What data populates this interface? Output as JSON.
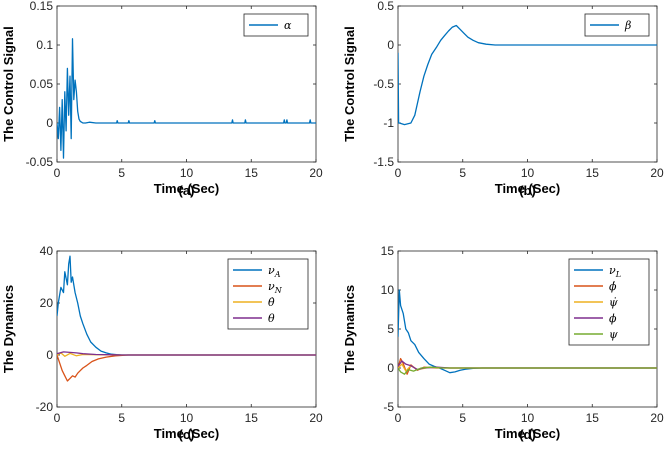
{
  "colors": {
    "blue": "#0072BD",
    "orange": "#D95319",
    "yellow": "#EDB120",
    "purple": "#7E2F8E",
    "green": "#77AC30"
  },
  "chart_data": [
    {
      "type": "line",
      "ylabel": "The Control Signal",
      "xlabel": "Time (Sec)",
      "caption": "(a)",
      "xlim": [
        0,
        20
      ],
      "ylim": [
        -0.05,
        0.15
      ],
      "xticks": [
        0,
        5,
        10,
        15,
        20
      ],
      "xtick_labels": [
        "0",
        "5",
        "10",
        "15",
        "20"
      ],
      "yticks": [
        -0.05,
        0,
        0.05,
        0.1,
        0.15
      ],
      "ytick_labels": [
        "-0.05",
        "0",
        "0.05",
        "0.1",
        "0.15"
      ],
      "legend_position": "top-right",
      "series": [
        {
          "name": "α",
          "color": "blue",
          "x": [
            0,
            0.1,
            0.2,
            0.3,
            0.4,
            0.5,
            0.6,
            0.7,
            0.8,
            0.9,
            1.0,
            1.1,
            1.2,
            1.3,
            1.4,
            1.5,
            1.6,
            1.7,
            1.8,
            1.9,
            2.0,
            2.2,
            2.5,
            3.0,
            4.0,
            4.6,
            4.65,
            4.7,
            5.0,
            5.5,
            5.55,
            5.6,
            6.0,
            7.5,
            7.55,
            7.6,
            8.0,
            10.0,
            13.5,
            13.55,
            13.6,
            14.5,
            14.55,
            14.6,
            17.5,
            17.55,
            17.6,
            17.7,
            17.75,
            17.8,
            19.5,
            19.55,
            19.6,
            20.0
          ],
          "y": [
            0.0,
            -0.02,
            0.02,
            -0.035,
            0.03,
            -0.045,
            0.04,
            -0.01,
            0.07,
            0.01,
            0.06,
            -0.02,
            0.108,
            0.03,
            0.055,
            0.04,
            0.015,
            0.005,
            0.002,
            0.001,
            0.0,
            0.0,
            0.001,
            0.0,
            0.0,
            0.0,
            0.003,
            0.0,
            0.0,
            0.0,
            0.003,
            0.0,
            0.0,
            0.0,
            0.003,
            0.0,
            0.0,
            0.0,
            0.0,
            0.004,
            0.0,
            0.0,
            0.004,
            0.0,
            0.0,
            0.004,
            0.0,
            0.0,
            0.004,
            0.0,
            0.0,
            0.004,
            0.0,
            0.0
          ]
        }
      ]
    },
    {
      "type": "line",
      "ylabel": "The Control Signal",
      "xlabel": "Time (Sec)",
      "caption": "(b)",
      "xlim": [
        0,
        20
      ],
      "ylim": [
        -1.5,
        0.5
      ],
      "xticks": [
        0,
        5,
        10,
        15,
        20
      ],
      "xtick_labels": [
        "0",
        "5",
        "10",
        "15",
        "20"
      ],
      "yticks": [
        -1.5,
        -1,
        -0.5,
        0,
        0.5
      ],
      "ytick_labels": [
        "-1.5",
        "-1",
        "-0.5",
        "0",
        "0.5"
      ],
      "legend_position": "top-right",
      "series": [
        {
          "name": "β",
          "color": "blue",
          "x": [
            0,
            0.05,
            0.1,
            0.5,
            1.0,
            1.3,
            1.5,
            1.7,
            2.0,
            2.3,
            2.6,
            3.0,
            3.3,
            3.6,
            3.9,
            4.2,
            4.5,
            4.8,
            5.1,
            5.4,
            5.8,
            6.2,
            6.8,
            7.5,
            8.5,
            10.0,
            15.0,
            20.0
          ],
          "y": [
            -0.1,
            -1.0,
            -1.0,
            -1.02,
            -1.0,
            -0.9,
            -0.75,
            -0.6,
            -0.4,
            -0.25,
            -0.12,
            -0.02,
            0.06,
            0.12,
            0.18,
            0.23,
            0.25,
            0.2,
            0.15,
            0.1,
            0.06,
            0.03,
            0.01,
            0.0,
            0.0,
            0.0,
            0.0,
            0.0
          ]
        }
      ]
    },
    {
      "type": "line",
      "ylabel": "The Dynamics",
      "xlabel": "Time (Sec)",
      "caption": "(c)",
      "xlim": [
        0,
        20
      ],
      "ylim": [
        -20,
        40
      ],
      "xticks": [
        0,
        5,
        10,
        15,
        20
      ],
      "xtick_labels": [
        "0",
        "5",
        "10",
        "15",
        "20"
      ],
      "yticks": [
        -20,
        0,
        20,
        40
      ],
      "ytick_labels": [
        "-20",
        "0",
        "20",
        "40"
      ],
      "legend_position": "top-right",
      "series": [
        {
          "name": "νA",
          "legend_base": "ν",
          "legend_sub": "A",
          "color": "blue",
          "x": [
            0,
            0.1,
            0.3,
            0.5,
            0.6,
            0.8,
            0.9,
            1.0,
            1.1,
            1.2,
            1.4,
            1.6,
            1.8,
            2.0,
            2.3,
            2.6,
            3.0,
            3.4,
            3.8,
            4.2,
            4.6,
            5.0,
            6.0,
            8.0,
            20.0
          ],
          "y": [
            15,
            20,
            26,
            24,
            32,
            27,
            35,
            38,
            28,
            30,
            24,
            20,
            15,
            12,
            8,
            5,
            3,
            1.5,
            0.8,
            0.3,
            0.1,
            0,
            0,
            0,
            0
          ]
        },
        {
          "name": "νN",
          "legend_base": "ν",
          "legend_sub": "N",
          "color": "orange",
          "x": [
            0,
            0.2,
            0.4,
            0.6,
            0.8,
            1.0,
            1.2,
            1.4,
            1.6,
            1.8,
            2.0,
            2.3,
            2.7,
            3.2,
            3.8,
            4.5,
            5.5,
            7.0,
            20.0
          ],
          "y": [
            0,
            -3,
            -6,
            -8,
            -10,
            -9,
            -8,
            -8.5,
            -7,
            -6,
            -5,
            -4,
            -2.5,
            -1.5,
            -0.8,
            -0.3,
            0,
            0,
            0
          ]
        },
        {
          "name": "θ̇",
          "legend_base": "θ̇",
          "legend_sub": "",
          "color": "yellow",
          "x": [
            0,
            0.3,
            0.6,
            1.0,
            1.5,
            2.0,
            3.0,
            5.0,
            20.0
          ],
          "y": [
            0,
            0.8,
            -0.5,
            0.6,
            -0.3,
            0.2,
            0.1,
            0,
            0
          ]
        },
        {
          "name": "θ",
          "legend_base": "θ",
          "legend_sub": "",
          "color": "purple",
          "x": [
            0,
            0.5,
            1.0,
            1.5,
            2.0,
            3.0,
            4.0,
            5.0,
            20.0
          ],
          "y": [
            0.5,
            1.2,
            1.0,
            0.8,
            0.5,
            0.2,
            0.1,
            0,
            0
          ]
        }
      ]
    },
    {
      "type": "line",
      "ylabel": "The Dynamics",
      "xlabel": "Time (Sec)",
      "caption": "(d)",
      "xlim": [
        0,
        20
      ],
      "ylim": [
        -5,
        15
      ],
      "xticks": [
        0,
        5,
        10,
        15,
        20
      ],
      "xtick_labels": [
        "0",
        "5",
        "10",
        "15",
        "20"
      ],
      "yticks": [
        -5,
        0,
        5,
        10,
        15
      ],
      "ytick_labels": [
        "-5",
        "0",
        "5",
        "10",
        "15"
      ],
      "legend_position": "top-right",
      "series": [
        {
          "name": "νL",
          "legend_base": "ν",
          "legend_sub": "L",
          "color": "blue",
          "x": [
            0,
            0.1,
            0.2,
            0.4,
            0.6,
            0.8,
            1.0,
            1.3,
            1.6,
            2.0,
            2.4,
            2.8,
            3.2,
            3.6,
            4.0,
            4.4,
            4.8,
            5.2,
            5.8,
            6.5,
            7.5,
            9.0,
            20.0
          ],
          "y": [
            4,
            10,
            8,
            7,
            5,
            4.5,
            3.5,
            3,
            2,
            1.2,
            0.5,
            0.2,
            0,
            -0.3,
            -0.6,
            -0.5,
            -0.3,
            -0.15,
            -0.05,
            0,
            0,
            0,
            0
          ]
        },
        {
          "name": "ϕ̇",
          "legend_base": "ϕ̇",
          "legend_sub": "",
          "color": "orange",
          "x": [
            0,
            0.2,
            0.4,
            0.7,
            1.0,
            1.5,
            2.0,
            3.0,
            5.0,
            20.0
          ],
          "y": [
            0,
            1.2,
            0.6,
            -0.8,
            0.4,
            -0.3,
            0.1,
            0,
            0,
            0
          ]
        },
        {
          "name": "ψ̇",
          "legend_base": "ψ̇",
          "legend_sub": "",
          "color": "yellow",
          "x": [
            0,
            0.3,
            0.6,
            1.0,
            1.5,
            2.5,
            4.0,
            20.0
          ],
          "y": [
            0,
            0.5,
            -0.4,
            0.3,
            -0.2,
            0.1,
            0,
            0
          ]
        },
        {
          "name": "ϕ",
          "legend_base": "ϕ",
          "legend_sub": "",
          "color": "purple",
          "x": [
            0,
            0.3,
            0.6,
            1.0,
            1.5,
            2.0,
            3.0,
            4.0,
            20.0
          ],
          "y": [
            0.2,
            0.9,
            0.5,
            0.3,
            -0.2,
            0,
            0.1,
            0,
            0
          ]
        },
        {
          "name": "ψ",
          "legend_base": "ψ",
          "legend_sub": "",
          "color": "green",
          "x": [
            0,
            0.2,
            0.5,
            0.8,
            1.2,
            1.8,
            2.5,
            3.5,
            5.0,
            20.0
          ],
          "y": [
            0,
            -0.5,
            -0.8,
            -0.2,
            -0.4,
            0,
            0.1,
            0,
            0,
            0
          ]
        }
      ]
    }
  ]
}
